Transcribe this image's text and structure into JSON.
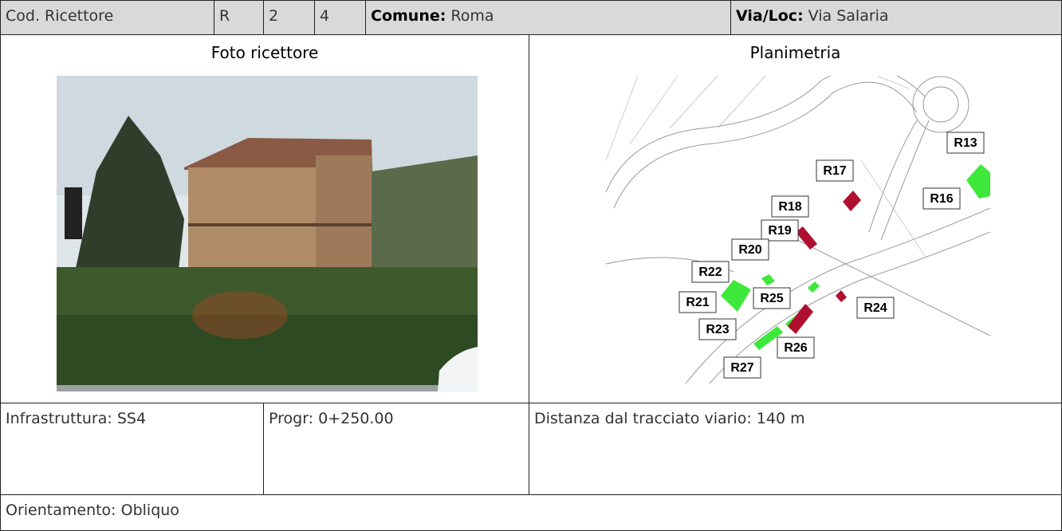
{
  "header": {
    "cod_label": "Cod. Ricettore",
    "code": [
      "R",
      "2",
      "4"
    ],
    "comune_label": "Comune:",
    "comune": "Roma",
    "via_label": "Via/Loc:",
    "via": "Via Salaria"
  },
  "photo": {
    "title": "Foto ricettore"
  },
  "map": {
    "title": "Planimetria",
    "labels": [
      "R13",
      "R17",
      "R16",
      "R18",
      "R19",
      "R20",
      "R22",
      "R25",
      "R21",
      "R24",
      "R23",
      "R26",
      "R27"
    ]
  },
  "info": {
    "infrastruttura": "Infrastruttura: SS4",
    "progr": "Progr: 0+250.00",
    "distanza": "Distanza dal tracciato viario: 140 m",
    "orientamento": "Orientamento: Obliquo"
  }
}
